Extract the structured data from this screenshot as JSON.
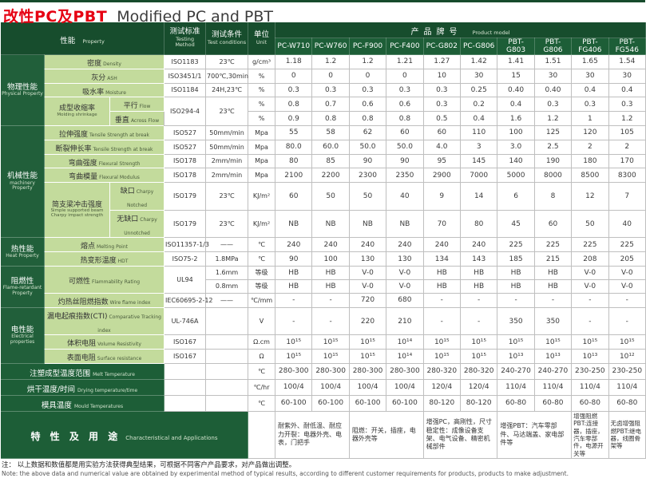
{
  "page": {
    "title_zh": "改性PC及PBT",
    "title_en": "Modified PC and PBT"
  },
  "header": {
    "property": {
      "zh": "性能",
      "en": "Property"
    },
    "method": {
      "zh": "测试标准",
      "en": "Testing Method"
    },
    "conditions": {
      "zh": "测试条件",
      "en": "Test conditions"
    },
    "unit": {
      "zh": "单位",
      "en": "Unit"
    },
    "product_model": {
      "zh": "产品牌号",
      "en": "Product model"
    },
    "products": [
      "PC-W710",
      "PC-W760",
      "PC-F900",
      "PC-F400",
      "PC-G802",
      "PC-G806",
      "PBT-G803",
      "PBT-G806",
      "PBT-FG406",
      "PBT-FG546"
    ]
  },
  "groups": [
    {
      "zh": "物理性能",
      "en": "Physical Property",
      "rows": 5
    },
    {
      "zh": "机械性能",
      "en": "machinery Property",
      "rows": 6
    },
    {
      "zh": "热性能",
      "en": "Heat Property",
      "rows": 2
    },
    {
      "zh": "阻燃性",
      "en": "Flame-retardant Property",
      "rows": 3
    },
    {
      "zh": "电性能",
      "en": "Electrical properties",
      "rows": 3
    }
  ],
  "rows": [
    {
      "zh": "密度",
      "en": "Density",
      "method": "ISO1183",
      "cond": "23℃",
      "unit": "g/cm³",
      "values": [
        "1.18",
        "1.2",
        "1.2",
        "1.21",
        "1.27",
        "1.42",
        "1.41",
        "1.51",
        "1.65",
        "1.54"
      ]
    },
    {
      "zh": "灰分",
      "en": "ASH",
      "method": "ISO3451/1",
      "cond": "700℃,30min",
      "unit": "%",
      "values": [
        "0",
        "0",
        "0",
        "0",
        "10",
        "30",
        "15",
        "30",
        "30",
        "30"
      ]
    },
    {
      "zh": "吸水率",
      "en": "Moisture",
      "method": "ISO1184",
      "cond": "24H,23℃",
      "unit": "%",
      "values": [
        "0.3",
        "0.3",
        "0.3",
        "0.3",
        "0.3",
        "0.25",
        "0.40",
        "0.40",
        "0.4",
        "0.4"
      ]
    },
    {
      "zh": "成型收缩率",
      "en": "Molding shrinkage",
      "rowspan": 2,
      "sub_zh": "平行",
      "sub_en": "Flow",
      "method": "ISO294-4",
      "method_rowspan": 2,
      "cond": "23℃",
      "cond_rowspan": 2,
      "unit": "%",
      "values": [
        "0.8",
        "0.7",
        "0.6",
        "0.6",
        "0.3",
        "0.2",
        "0.4",
        "0.3",
        "0.3",
        "0.3"
      ]
    },
    {
      "cont": true,
      "sub_zh": "垂直",
      "sub_en": "Across Flow",
      "skip_method": true,
      "skip_cond": true,
      "unit": "%",
      "values": [
        "0.9",
        "0.8",
        "0.8",
        "0.8",
        "0.5",
        "0.4",
        "1.6",
        "1.2",
        "1",
        "1.2"
      ]
    },
    {
      "zh": "拉伸强度",
      "en": "Tensile Strength at break",
      "method": "ISO527",
      "cond": "50mm/min",
      "unit": "Mpa",
      "values": [
        "55",
        "58",
        "62",
        "60",
        "60",
        "110",
        "100",
        "125",
        "120",
        "105"
      ]
    },
    {
      "zh": "断裂伸长率",
      "en": "Tensile Strength at break",
      "method": "ISO527",
      "cond": "50mm/min",
      "unit": "Mpa",
      "values": [
        "80.0",
        "60.0",
        "50.0",
        "50.0",
        "4.0",
        "3",
        "3.0",
        "2.5",
        "2",
        "2"
      ]
    },
    {
      "zh": "弯曲强度",
      "en": "Flexural Strength",
      "method": "ISO178",
      "cond": "2mm/min",
      "unit": "Mpa",
      "values": [
        "80",
        "85",
        "90",
        "90",
        "95",
        "145",
        "140",
        "190",
        "180",
        "170"
      ]
    },
    {
      "zh": "弯曲模量",
      "en": "Flexural Modulus",
      "method": "ISO178",
      "cond": "2mm/min",
      "unit": "Mpa",
      "values": [
        "2100",
        "2200",
        "2300",
        "2350",
        "2900",
        "7000",
        "5000",
        "8000",
        "8500",
        "8300"
      ]
    },
    {
      "zh": "简支梁冲击强度",
      "en": "Simple supported beam Charpy impact strength",
      "rowspan": 2,
      "sub_zh": "缺口",
      "sub_en": "Charpy Notched",
      "method": "ISO179",
      "cond": "23℃",
      "unit": "KJ/m²",
      "values": [
        "60",
        "50",
        "50",
        "40",
        "9",
        "14",
        "6",
        "8",
        "12",
        "7"
      ]
    },
    {
      "cont": true,
      "sub_zh": "无缺口",
      "sub_en": "Charpy Unnotched",
      "method": "ISO179",
      "cond": "23℃",
      "unit": "KJ/m²",
      "values": [
        "NB",
        "NB",
        "NB",
        "NB",
        "70",
        "80",
        "45",
        "60",
        "50",
        "40"
      ]
    },
    {
      "zh": "熔点",
      "en": "Melting Point",
      "method": "ISO11357-1/3",
      "cond": "——",
      "unit": "℃",
      "values": [
        "240",
        "240",
        "240",
        "240",
        "240",
        "240",
        "225",
        "225",
        "225",
        "225"
      ]
    },
    {
      "zh": "热变形温度",
      "en": "HDT",
      "method": "ISO75-2",
      "cond": "1.8MPa",
      "unit": "℃",
      "values": [
        "90",
        "100",
        "130",
        "130",
        "134",
        "143",
        "185",
        "215",
        "208",
        "205"
      ]
    },
    {
      "zh": "可燃性",
      "en": "Flammability Rating",
      "rowspan": 2,
      "nosub": true,
      "method": "UL94",
      "method_rowspan": 2,
      "cond": "1.6mm",
      "unit": "等级",
      "values": [
        "HB",
        "HB",
        "V-0",
        "V-0",
        "HB",
        "HB",
        "HB",
        "HB",
        "V-0",
        "V-0"
      ]
    },
    {
      "cont": true,
      "nosub": true,
      "skip_method": true,
      "cond": "0.8mm",
      "unit": "等级",
      "values": [
        "HB",
        "HB",
        "V-0",
        "V-0",
        "HB",
        "HB",
        "HB",
        "HB",
        "V-0",
        "V-0"
      ]
    },
    {
      "zh": "灼热丝阻燃指数",
      "en": "Wire flame index",
      "method": "IEC60695-2-12",
      "cond": "——",
      "unit": "℃/mm",
      "values": [
        "-",
        "-",
        "720",
        "680",
        "-",
        "-",
        "-",
        "-",
        "-",
        "-"
      ]
    },
    {
      "zh": "漏电起痕指数(CTI)",
      "en": "Comparative Tracking index",
      "method": "UL-746A",
      "cond": "",
      "unit": "V",
      "values": [
        "-",
        "-",
        "220",
        "210",
        "-",
        "-",
        "350",
        "350",
        "-",
        "-"
      ]
    },
    {
      "zh": "体积电阻",
      "en": "Volume Resistivity",
      "method": "ISO167",
      "cond": "",
      "unit": "Ω.cm",
      "values": [
        "10¹⁵",
        "10¹⁵",
        "10¹⁵",
        "10¹⁴",
        "10¹⁵",
        "10¹⁵",
        "10¹⁵",
        "10¹⁵",
        "10¹⁵",
        "10¹⁵"
      ]
    },
    {
      "zh": "表面电阻",
      "en": "Surface resistance",
      "method": "ISO167",
      "cond": "",
      "unit": "Ω",
      "values": [
        "10¹⁵",
        "10¹⁵",
        "10¹⁵",
        "10¹⁴",
        "10¹⁵",
        "10¹⁵",
        "10¹³",
        "10¹³",
        "10¹³",
        "10¹²"
      ]
    },
    {
      "dark": true,
      "zh": "注塑成型温度范围",
      "en": "Melt Temperature",
      "method": "",
      "cond": "",
      "unit": "℃",
      "values": [
        "280-300",
        "280-300",
        "280-300",
        "280-300",
        "280-320",
        "280-320",
        "240-270",
        "240-270",
        "230-250",
        "230-250"
      ]
    },
    {
      "dark": true,
      "zh": "烘干温度/时间",
      "en": "Drying temperature/time",
      "method": "",
      "cond": "",
      "unit": "℃/hr",
      "values": [
        "100/4",
        "100/4",
        "100/4",
        "100/4",
        "120/4",
        "120/4",
        "110/4",
        "110/4",
        "110/4",
        "110/4"
      ]
    },
    {
      "dark": true,
      "zh": "模具温度",
      "en": "Mould Temperatures",
      "method": "",
      "cond": "",
      "unit": "℃",
      "values": [
        "60-100",
        "60-100",
        "60-100",
        "60-100",
        "80-120",
        "80-120",
        "60-80",
        "60-80",
        "60-80",
        "60-80"
      ]
    }
  ],
  "applications": {
    "title_zh": "特 性 及 用 途",
    "title_en": "Characteristical and Applications",
    "cells": [
      {
        "span": 2,
        "text": "耐紫外、耐低温、耐应力开裂：电器外壳、电表，门把手"
      },
      {
        "span": 2,
        "text": "阻燃：开关，插座，电器外壳等"
      },
      {
        "span": 2,
        "text": "增强PC，高刚性，尺寸稳定性：成像设备支架、电气设备、精密机械部件"
      },
      {
        "span": 2,
        "text": "增强PBT：汽车零部件、马达端盖、家电部件等"
      },
      {
        "span": 1,
        "text": "增强阻燃PBT:连接器，插座，汽车零部件，电源开关等"
      },
      {
        "span": 1,
        "text": "无卤增强阻燃PBT:继电器，线圈骨架等"
      }
    ]
  },
  "note": {
    "zh": "注： 以上数据和数值都是用实验方法获得典型结果，可根据不同客户产品要求，对产品做出调整。",
    "en": "Note: the above data and numerical value are obtained by experimental method of typical results, according to different customer requirements for products, products to make adjustment."
  }
}
